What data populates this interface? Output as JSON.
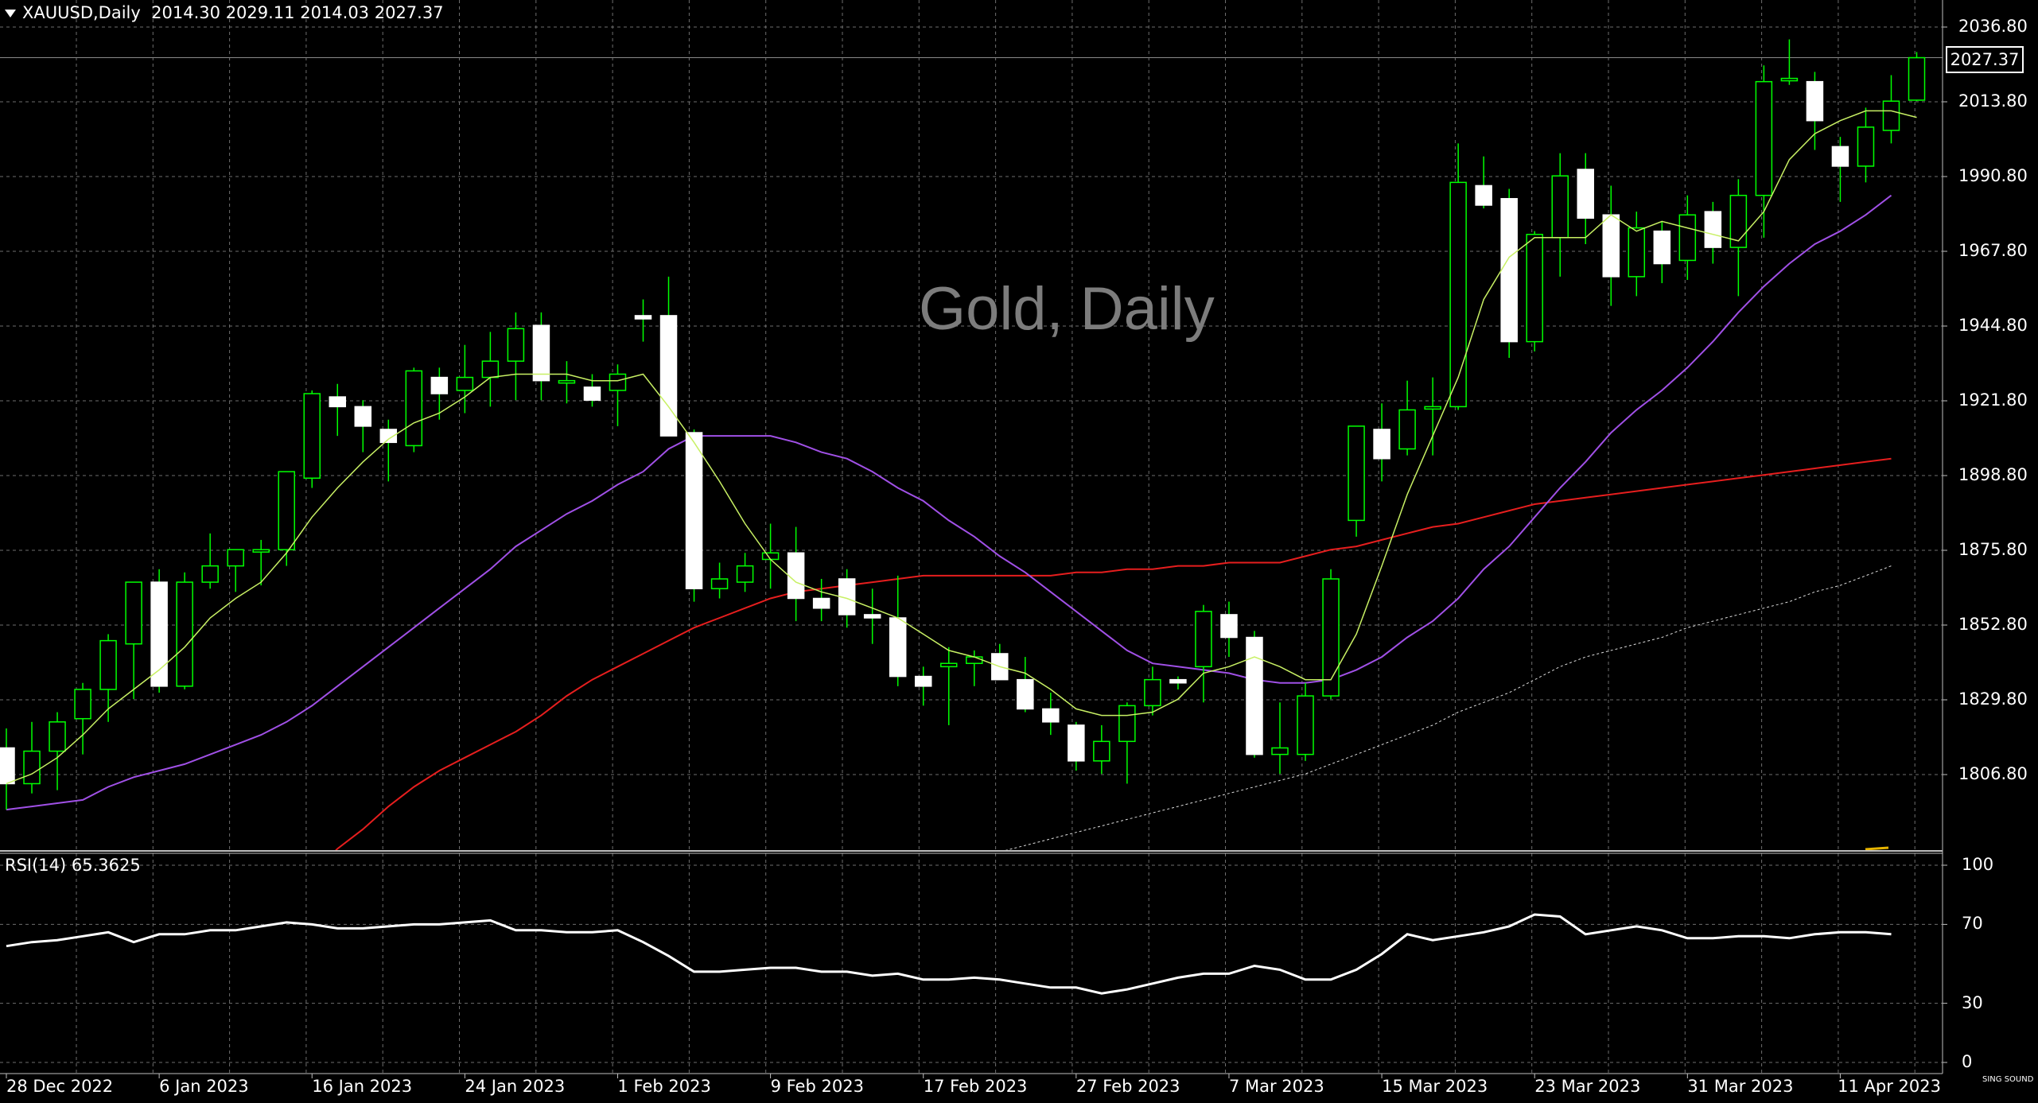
{
  "header": {
    "symbol_label": "XAUUSD,Daily",
    "ohlc": "2014.30 2029.11 2014.03 2027.37"
  },
  "watermark": "Gold, Daily",
  "rsi_label": "RSI(14) 65.3625",
  "price_box": "2027.37",
  "logo_text": "SING SOUND",
  "colors": {
    "background": "#000000",
    "grid": "#6e6e6e",
    "bull_candle": "#000000",
    "bear_candle": "#ffffff",
    "candle_wick": "#00ff00",
    "ma_fast": "#c8f064",
    "ma_medium": "#a050e6",
    "ma_slow": "#e61e1e",
    "ma_long": "#dcdcdc",
    "rsi": "#ffffff"
  },
  "chart_data": [
    {
      "type": "candlestick",
      "symbol": "XAUUSD",
      "timeframe": "Daily",
      "ylim": [
        1789.0,
        2043.0
      ],
      "y_ticks": [
        "2036.80",
        "2013.80",
        "1990.80",
        "1967.80",
        "1944.80",
        "1921.80",
        "1898.80",
        "1875.80",
        "1852.80",
        "1829.80",
        "1806.80"
      ],
      "x_tick_labels": [
        "28 Dec 2022",
        "6 Jan 2023",
        "16 Jan 2023",
        "24 Jan 2023",
        "1 Feb 2023",
        "9 Feb 2023",
        "17 Feb 2023",
        "27 Feb 2023",
        "7 Mar 2023",
        "15 Mar 2023",
        "23 Mar 2023",
        "31 Mar 2023",
        "11 Apr 2023"
      ],
      "x_tick_index": [
        0,
        6,
        12,
        18,
        24,
        30,
        36,
        42,
        48,
        54,
        60,
        66,
        72
      ],
      "candles": [
        {
          "o": 1815,
          "h": 1821,
          "l": 1796,
          "c": 1804
        },
        {
          "o": 1804,
          "h": 1823,
          "l": 1801,
          "c": 1814
        },
        {
          "o": 1814,
          "h": 1826,
          "l": 1802,
          "c": 1823
        },
        {
          "o": 1824,
          "h": 1835,
          "l": 1813,
          "c": 1833
        },
        {
          "o": 1833,
          "h": 1850,
          "l": 1823,
          "c": 1848
        },
        {
          "o": 1847,
          "h": 1865,
          "l": 1830,
          "c": 1866
        },
        {
          "o": 1866,
          "h": 1870,
          "l": 1832,
          "c": 1834
        },
        {
          "o": 1834,
          "h": 1869,
          "l": 1833,
          "c": 1866
        },
        {
          "o": 1866,
          "h": 1881,
          "l": 1864,
          "c": 1871
        },
        {
          "o": 1871,
          "h": 1875,
          "l": 1863,
          "c": 1876
        },
        {
          "o": 1876,
          "h": 1879,
          "l": 1865,
          "c": 1876
        },
        {
          "o": 1876,
          "h": 1900,
          "l": 1871,
          "c": 1900
        },
        {
          "o": 1898,
          "h": 1925,
          "l": 1895,
          "c": 1924
        },
        {
          "o": 1923,
          "h": 1927,
          "l": 1911,
          "c": 1920
        },
        {
          "o": 1920,
          "h": 1922,
          "l": 1906,
          "c": 1914
        },
        {
          "o": 1913,
          "h": 1916,
          "l": 1897,
          "c": 1909
        },
        {
          "o": 1908,
          "h": 1932,
          "l": 1906,
          "c": 1931
        },
        {
          "o": 1929,
          "h": 1932,
          "l": 1916,
          "c": 1924
        },
        {
          "o": 1925,
          "h": 1939,
          "l": 1918,
          "c": 1929
        },
        {
          "o": 1929,
          "h": 1943,
          "l": 1920,
          "c": 1934
        },
        {
          "o": 1934,
          "h": 1949,
          "l": 1922,
          "c": 1944
        },
        {
          "o": 1945,
          "h": 1949,
          "l": 1922,
          "c": 1928
        },
        {
          "o": 1928,
          "h": 1934,
          "l": 1921,
          "c": 1928
        },
        {
          "o": 1926,
          "h": 1930,
          "l": 1920,
          "c": 1922
        },
        {
          "o": 1925,
          "h": 1933,
          "l": 1914,
          "c": 1930
        },
        {
          "o": 1948,
          "h": 1953,
          "l": 1940,
          "c": 1947
        },
        {
          "o": 1948,
          "h": 1960,
          "l": 1912,
          "c": 1911
        },
        {
          "o": 1912,
          "h": 1913,
          "l": 1860,
          "c": 1864
        },
        {
          "o": 1864,
          "h": 1872,
          "l": 1861,
          "c": 1867
        },
        {
          "o": 1866,
          "h": 1875,
          "l": 1863,
          "c": 1871
        },
        {
          "o": 1873,
          "h": 1884,
          "l": 1864,
          "c": 1875
        },
        {
          "o": 1875,
          "h": 1883,
          "l": 1854,
          "c": 1861
        },
        {
          "o": 1861,
          "h": 1867,
          "l": 1854,
          "c": 1858
        },
        {
          "o": 1867,
          "h": 1870,
          "l": 1852,
          "c": 1856
        },
        {
          "o": 1856,
          "h": 1864,
          "l": 1847,
          "c": 1855
        },
        {
          "o": 1855,
          "h": 1868,
          "l": 1834,
          "c": 1837
        },
        {
          "o": 1837,
          "h": 1840,
          "l": 1828,
          "c": 1834
        },
        {
          "o": 1840,
          "h": 1846,
          "l": 1822,
          "c": 1841
        },
        {
          "o": 1841,
          "h": 1845,
          "l": 1834,
          "c": 1843
        },
        {
          "o": 1844,
          "h": 1847,
          "l": 1836,
          "c": 1836
        },
        {
          "o": 1836,
          "h": 1843,
          "l": 1826,
          "c": 1827
        },
        {
          "o": 1827,
          "h": 1832,
          "l": 1819,
          "c": 1823
        },
        {
          "o": 1822,
          "h": 1823,
          "l": 1808,
          "c": 1811
        },
        {
          "o": 1811,
          "h": 1822,
          "l": 1807,
          "c": 1817
        },
        {
          "o": 1817,
          "h": 1829,
          "l": 1804,
          "c": 1828
        },
        {
          "o": 1828,
          "h": 1840,
          "l": 1825,
          "c": 1836
        },
        {
          "o": 1836,
          "h": 1837,
          "l": 1833,
          "c": 1835
        },
        {
          "o": 1840,
          "h": 1859,
          "l": 1829,
          "c": 1857
        },
        {
          "o": 1856,
          "h": 1860,
          "l": 1843,
          "c": 1849
        },
        {
          "o": 1849,
          "h": 1851,
          "l": 1812,
          "c": 1813
        },
        {
          "o": 1813,
          "h": 1829,
          "l": 1807,
          "c": 1815
        },
        {
          "o": 1813,
          "h": 1835,
          "l": 1811,
          "c": 1831
        },
        {
          "o": 1831,
          "h": 1870,
          "l": 1830,
          "c": 1867
        },
        {
          "o": 1885,
          "h": 1914,
          "l": 1880,
          "c": 1914
        },
        {
          "o": 1913,
          "h": 1921,
          "l": 1897,
          "c": 1904
        },
        {
          "o": 1907,
          "h": 1928,
          "l": 1905,
          "c": 1919
        },
        {
          "o": 1920,
          "h": 1929,
          "l": 1905,
          "c": 1920
        },
        {
          "o": 1920,
          "h": 2001,
          "l": 1919,
          "c": 1989
        },
        {
          "o": 1988,
          "h": 1997,
          "l": 1981,
          "c": 1982
        },
        {
          "o": 1984,
          "h": 1987,
          "l": 1935,
          "c": 1940
        },
        {
          "o": 1940,
          "h": 1974,
          "l": 1937,
          "c": 1973
        },
        {
          "o": 1972,
          "h": 1998,
          "l": 1960,
          "c": 1991
        },
        {
          "o": 1993,
          "h": 1998,
          "l": 1970,
          "c": 1978
        },
        {
          "o": 1979,
          "h": 1988,
          "l": 1951,
          "c": 1960
        },
        {
          "o": 1960,
          "h": 1980,
          "l": 1954,
          "c": 1975
        },
        {
          "o": 1974,
          "h": 1977,
          "l": 1958,
          "c": 1964
        },
        {
          "o": 1965,
          "h": 1985,
          "l": 1959,
          "c": 1979
        },
        {
          "o": 1980,
          "h": 1983,
          "l": 1964,
          "c": 1969
        },
        {
          "o": 1969,
          "h": 1990,
          "l": 1954,
          "c": 1985
        },
        {
          "o": 1985,
          "h": 2025,
          "l": 1972,
          "c": 2020
        },
        {
          "o": 2021,
          "h": 2033,
          "l": 2019,
          "c": 2021
        },
        {
          "o": 2020,
          "h": 2023,
          "l": 1999,
          "c": 2008
        },
        {
          "o": 2000,
          "h": 2003,
          "l": 1983,
          "c": 1994
        },
        {
          "o": 1994,
          "h": 2012,
          "l": 1989,
          "c": 2006
        },
        {
          "o": 2005,
          "h": 2022,
          "l": 2001,
          "c": 2014
        },
        {
          "o": 2014.3,
          "h": 2029.11,
          "l": 2014.03,
          "c": 2027.37
        }
      ],
      "ma_fast": [
        1804,
        1807,
        1812,
        1819,
        1827,
        1833,
        1839,
        1846,
        1855,
        1861,
        1866,
        1875,
        1886,
        1895,
        1903,
        1910,
        1915,
        1918,
        1923,
        1929,
        1930,
        1930,
        1930,
        1928,
        1928,
        1930,
        1920,
        1909,
        1897,
        1884,
        1873,
        1866,
        1863,
        1861,
        1858,
        1855,
        1850,
        1845,
        1843,
        1840,
        1838,
        1833,
        1827,
        1825,
        1825,
        1826,
        1830,
        1838,
        1840,
        1843,
        1840,
        1836,
        1836,
        1850,
        1871,
        1893,
        1911,
        1929,
        1953,
        1966,
        1972,
        1972,
        1972,
        1979,
        1974,
        1977,
        1975,
        1973,
        1971,
        1980,
        1996,
        2004,
        2008,
        2011,
        2011,
        2009
      ],
      "ma_medium": [
        1796,
        1797,
        1798,
        1799,
        1803,
        1806,
        1808,
        1810,
        1813,
        1816,
        1819,
        1823,
        1828,
        1834,
        1840,
        1846,
        1852,
        1858,
        1864,
        1870,
        1877,
        1882,
        1887,
        1891,
        1896,
        1900,
        1907,
        1911,
        1911,
        1911,
        1911,
        1909,
        1906,
        1904,
        1900,
        1895,
        1891,
        1885,
        1880,
        1874,
        1869,
        1863,
        1857,
        1851,
        1845,
        1841,
        1840,
        1839,
        1838,
        1836,
        1835,
        1835,
        1836,
        1839,
        1843,
        1849,
        1854,
        1861,
        1870,
        1877,
        1886,
        1895,
        1903,
        1912,
        1919,
        1925,
        1932,
        1940,
        1949,
        1957,
        1964,
        1970,
        1974,
        1979,
        1985
      ],
      "ma_slow": [
        1704,
        1710,
        1716,
        1722,
        1728,
        1734,
        1740,
        1746,
        1752,
        1758,
        1764,
        1770,
        1776,
        1784,
        1790,
        1797,
        1803,
        1808,
        1812,
        1816,
        1820,
        1825,
        1831,
        1836,
        1840,
        1844,
        1848,
        1852,
        1855,
        1858,
        1861,
        1863,
        1864,
        1865,
        1866,
        1867,
        1868,
        1868,
        1868,
        1868,
        1868,
        1868,
        1869,
        1869,
        1870,
        1870,
        1871,
        1871,
        1872,
        1872,
        1872,
        1874,
        1876,
        1877,
        1879,
        1881,
        1883,
        1884,
        1886,
        1888,
        1890,
        1891,
        1892,
        1893,
        1894,
        1895,
        1896,
        1897,
        1898,
        1899,
        1900,
        1901,
        1902,
        1903,
        1904
      ],
      "ma_long": [
        1705,
        1707,
        1709,
        1711,
        1713,
        1715,
        1717,
        1719,
        1721,
        1723,
        1725,
        1727,
        1729,
        1731,
        1733,
        1735,
        1737,
        1739,
        1741,
        1743,
        1745,
        1747,
        1749,
        1751,
        1753,
        1755,
        1757,
        1759,
        1761,
        1763,
        1765,
        1767,
        1769,
        1771,
        1773,
        1775,
        1777,
        1779,
        1781,
        1783,
        1785,
        1787,
        1789,
        1791,
        1793,
        1795,
        1797,
        1799,
        1801,
        1803,
        1805,
        1807,
        1810,
        1813,
        1816,
        1819,
        1822,
        1826,
        1829,
        1832,
        1836,
        1840,
        1843,
        1845,
        1847,
        1849,
        1852,
        1854,
        1856,
        1858,
        1860,
        1863,
        1865,
        1868,
        1871
      ]
    },
    {
      "type": "line",
      "title": "RSI(14) 65.3625",
      "ylim": [
        0,
        100
      ],
      "y_ticks": [
        "100",
        "70",
        "30",
        "0"
      ],
      "values": [
        59,
        61,
        62,
        64,
        66,
        61,
        65,
        65,
        67,
        67,
        69,
        71,
        70,
        68,
        68,
        69,
        70,
        70,
        71,
        72,
        67,
        67,
        66,
        66,
        67,
        61,
        54,
        46,
        46,
        47,
        48,
        48,
        46,
        46,
        44,
        45,
        42,
        42,
        43,
        42,
        40,
        38,
        38,
        35,
        37,
        40,
        43,
        45,
        45,
        49,
        47,
        42,
        42,
        47,
        55,
        65,
        62,
        64,
        66,
        69,
        75,
        74,
        65,
        67,
        69,
        67,
        63,
        63,
        64,
        64,
        63,
        65,
        66,
        66,
        65
      ]
    }
  ]
}
